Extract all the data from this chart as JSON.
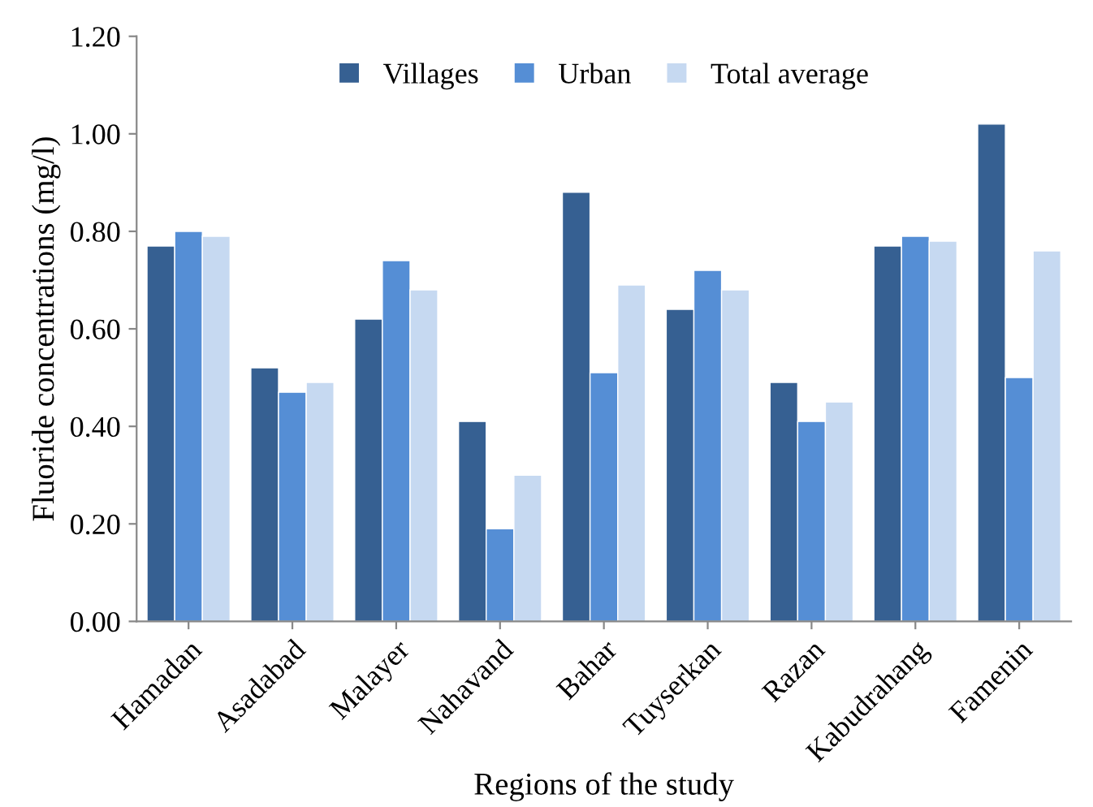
{
  "chart_data": {
    "type": "bar",
    "xlabel": "Regions of the study",
    "ylabel": "Fluoride concentrations (mg/l)",
    "categories": [
      "Hamadan",
      "Asadabad",
      "Malayer",
      "Nahavand",
      "Bahar",
      "Tuyserkan",
      "Razan",
      "Kabudrahang",
      "Famenin"
    ],
    "series": [
      {
        "name": "Villages",
        "color": "#366092",
        "values": [
          0.77,
          0.52,
          0.62,
          0.41,
          0.88,
          0.64,
          0.49,
          0.77,
          1.02
        ]
      },
      {
        "name": "Urban",
        "color": "#558ed5",
        "values": [
          0.8,
          0.47,
          0.74,
          0.19,
          0.51,
          0.72,
          0.41,
          0.79,
          0.5
        ]
      },
      {
        "name": "Total average",
        "color": "#c6d9f1",
        "values": [
          0.79,
          0.49,
          0.68,
          0.3,
          0.69,
          0.68,
          0.45,
          0.78,
          0.76
        ]
      }
    ],
    "ylim": [
      0,
      1.2
    ],
    "yticks": [
      {
        "value": 0,
        "label": "0.00"
      },
      {
        "value": 0.2,
        "label": "0.20"
      },
      {
        "value": 0.4,
        "label": "0.40"
      },
      {
        "value": 0.6,
        "label": "0.60"
      },
      {
        "value": 0.8,
        "label": "0.80"
      },
      {
        "value": 1.0,
        "label": "1.00"
      },
      {
        "value": 1.2,
        "label": "1.20"
      }
    ],
    "grid": false,
    "legend": "top"
  }
}
